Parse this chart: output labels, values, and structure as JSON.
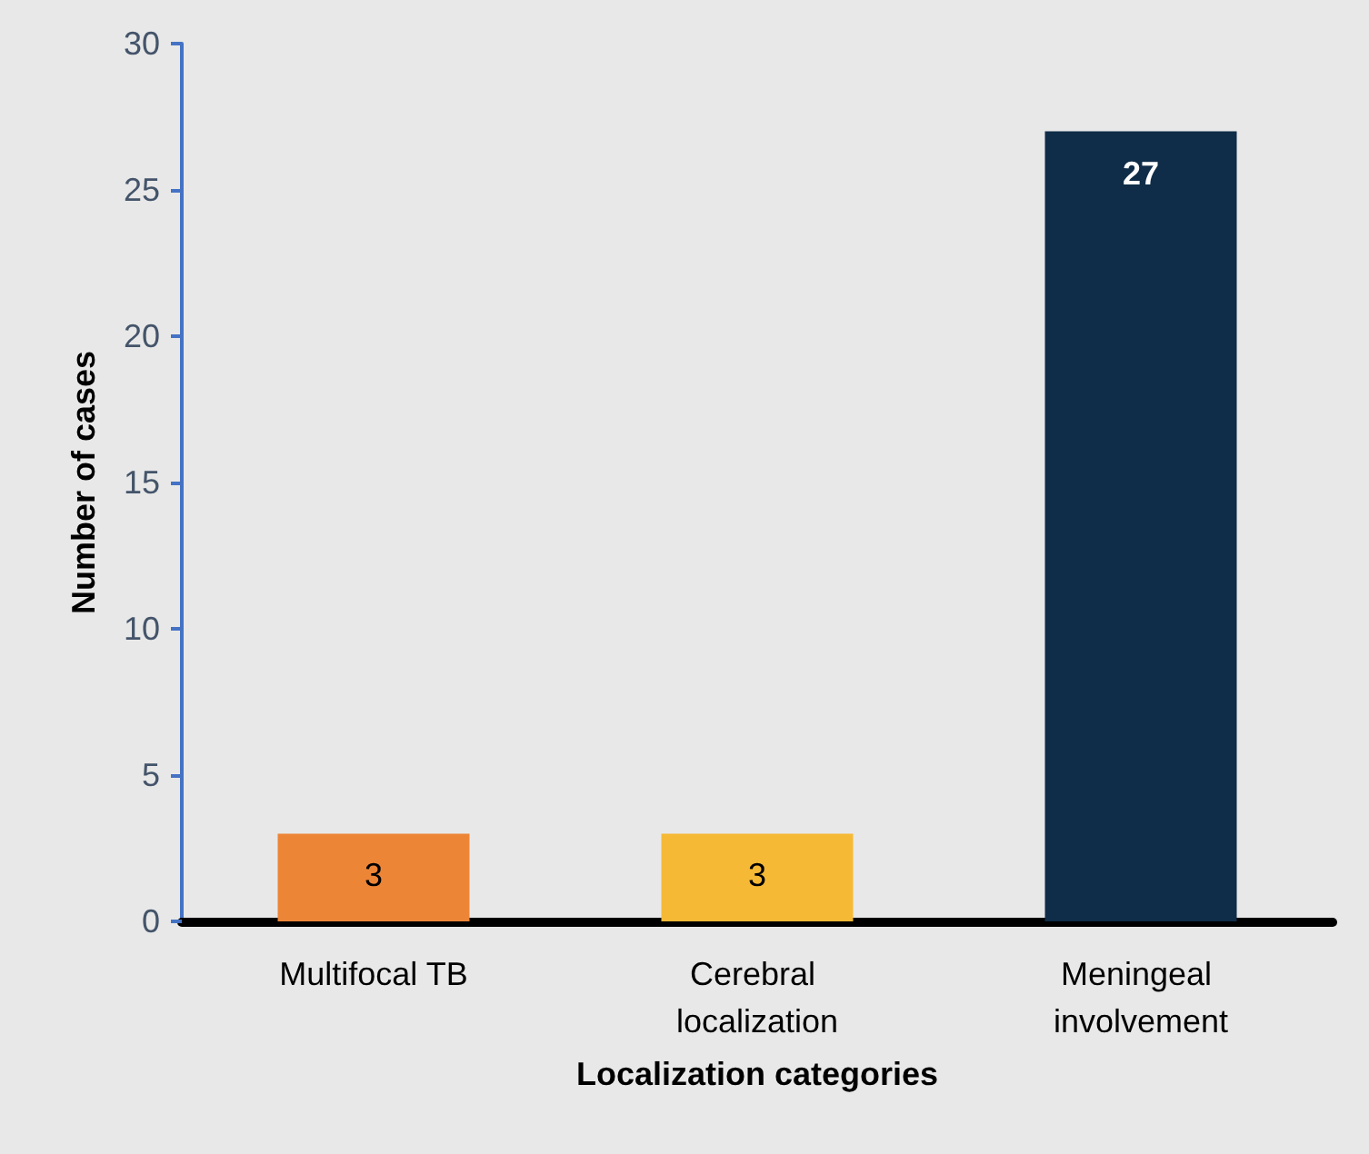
{
  "chart_data": {
    "type": "bar",
    "xlabel": "Localization categories",
    "ylabel": "Number of cases",
    "categories": [
      "Multifocal TB",
      "Cerebral localization",
      "Meningeal involvement"
    ],
    "values": [
      3,
      3,
      27
    ],
    "colors": [
      "#ed8537",
      "#f5b935",
      "#0f2d48"
    ],
    "ylim": [
      0,
      30
    ],
    "yticks": [
      0,
      5,
      10,
      15,
      20,
      25,
      30
    ],
    "grid": false,
    "data_labels": true
  }
}
